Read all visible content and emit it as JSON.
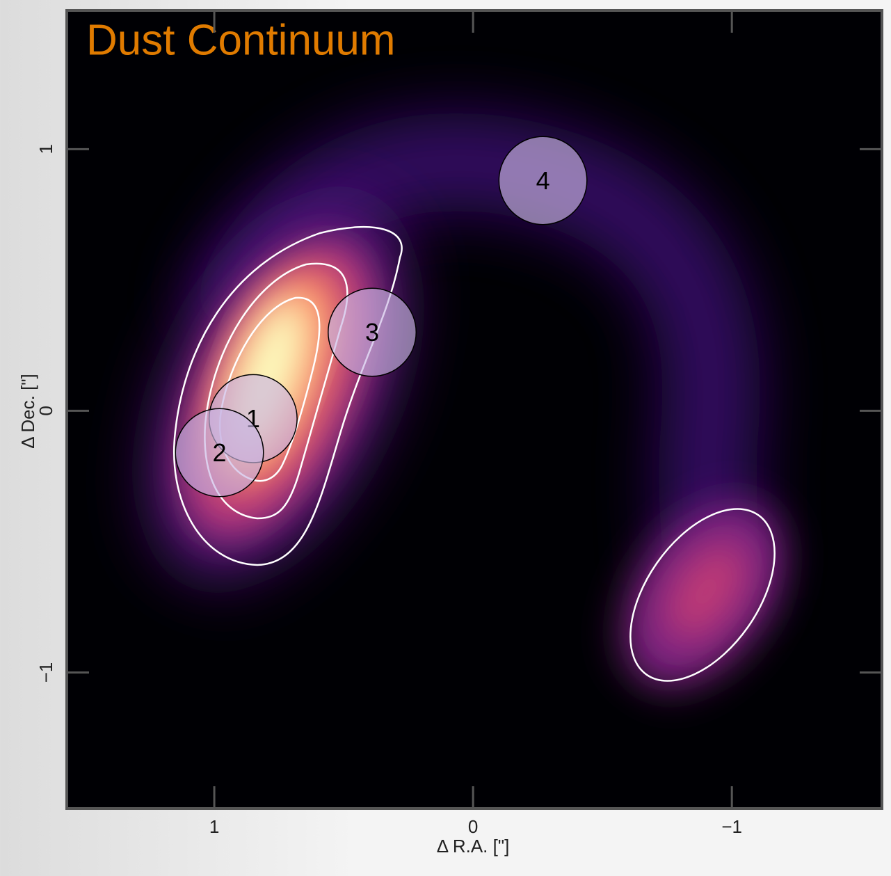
{
  "chart_data": {
    "type": "image",
    "title": "Dust Continuum",
    "title_color": "#e07b00",
    "x_label": "Δ R.A. [\"]",
    "y_label": "Δ Dec. [\"]",
    "xlim": [
      1.57,
      -1.58
    ],
    "ylim": [
      -1.52,
      1.53
    ],
    "xticks": [
      1,
      0,
      {
        "value": -1,
        "label": "−1"
      }
    ],
    "yticks": [
      1,
      0,
      {
        "value": -1,
        "label": "−1"
      }
    ],
    "apertures": [
      {
        "label": "1",
        "x": 0.85,
        "y": -0.03,
        "r": 0.17
      },
      {
        "label": "2",
        "x": 0.98,
        "y": -0.16,
        "r": 0.17
      },
      {
        "label": "3",
        "x": 0.39,
        "y": 0.3,
        "r": 0.17
      },
      {
        "label": "4",
        "x": -0.27,
        "y": 0.88,
        "r": 0.17
      }
    ],
    "aperture_color": "#c9b6e4"
  }
}
